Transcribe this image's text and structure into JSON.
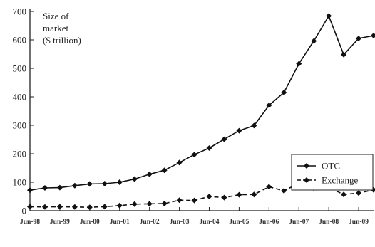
{
  "chart_data": {
    "type": "line",
    "ylabel_lines": [
      "Size of",
      "market",
      "($ trillion)"
    ],
    "ylim": [
      0,
      700
    ],
    "yticks": [
      0,
      100,
      200,
      300,
      400,
      500,
      600,
      700
    ],
    "x_tick_labels": [
      "Jun-98",
      "Jun-99",
      "Jun-00",
      "Jun-01",
      "Jun-02",
      "Jun-03",
      "Jun-04",
      "Jun-05",
      "Jun-06",
      "Jun-07",
      "Jun-08",
      "Jun-09"
    ],
    "x": [
      "Jun-98",
      "Dec-98",
      "Jun-99",
      "Dec-99",
      "Jun-00",
      "Dec-00",
      "Jun-01",
      "Dec-01",
      "Jun-02",
      "Dec-02",
      "Jun-03",
      "Dec-03",
      "Jun-04",
      "Dec-04",
      "Jun-05",
      "Dec-05",
      "Jun-06",
      "Dec-06",
      "Jun-07",
      "Dec-07",
      "Jun-08",
      "Dec-08",
      "Jun-09",
      "Dec-09"
    ],
    "series": [
      {
        "name": "OTC",
        "line_style": "solid",
        "marker": "diamond",
        "values": [
          72,
          80,
          81,
          88,
          94,
          95,
          100,
          111,
          128,
          142,
          169,
          197,
          220,
          251,
          281,
          299,
          370,
          415,
          516,
          596,
          684,
          548,
          605,
          615
        ]
      },
      {
        "name": "Exchange",
        "line_style": "dashed",
        "marker": "diamond",
        "values": [
          14,
          13,
          14,
          13,
          12,
          14,
          18,
          23,
          24,
          25,
          37,
          36,
          50,
          46,
          56,
          57,
          84,
          70,
          96,
          79,
          82,
          57,
          62,
          73
        ]
      }
    ],
    "legend_position": "bottom-right",
    "grid": false
  }
}
